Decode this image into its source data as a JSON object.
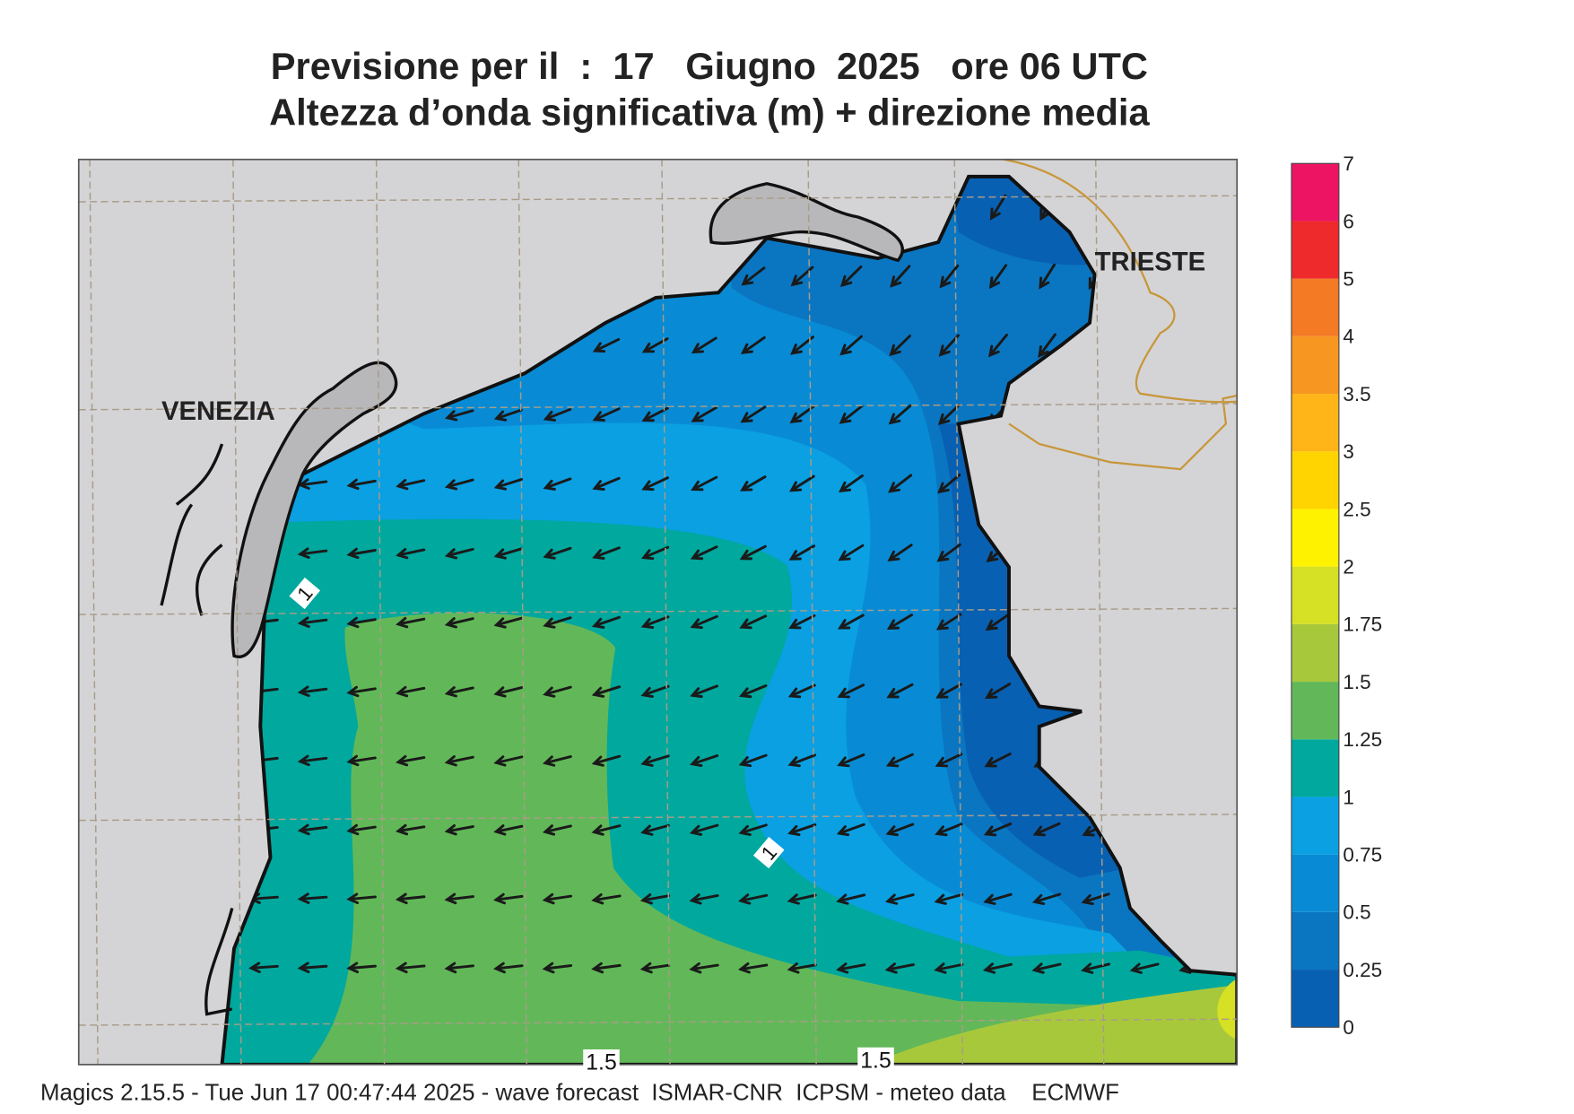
{
  "title": {
    "line1": "Previsione per il  :  17   Giugno  2025   ore 06 UTC",
    "line2": "Altezza d’onda significativa (m) + direzione media"
  },
  "colorbar": {
    "levels": [
      0,
      0.25,
      0.5,
      0.75,
      1,
      1.25,
      1.5,
      1.75,
      2,
      2.5,
      3,
      3.5,
      4,
      5,
      6,
      7
    ],
    "colors": [
      "#0860b2",
      "#0a76c2",
      "#088bd4",
      "#0aa0e2",
      "#00a89e",
      "#62b858",
      "#a8c83c",
      "#d6e024",
      "#fff200",
      "#ffd400",
      "#ffb418",
      "#f89622",
      "#f47a24",
      "#ee2a2c",
      "#ee1464"
    ]
  },
  "map_labels": [
    "VENEZIA",
    "TRIESTE"
  ],
  "contour_labels": [
    "1",
    "1",
    "1.5",
    "1.5"
  ],
  "footer": "Magics 2.15.5 - Tue Jun 17 00:47:44 2025 - wave forecast  ISMAR-CNR  ICPSM - meteo data    ECMWF"
}
